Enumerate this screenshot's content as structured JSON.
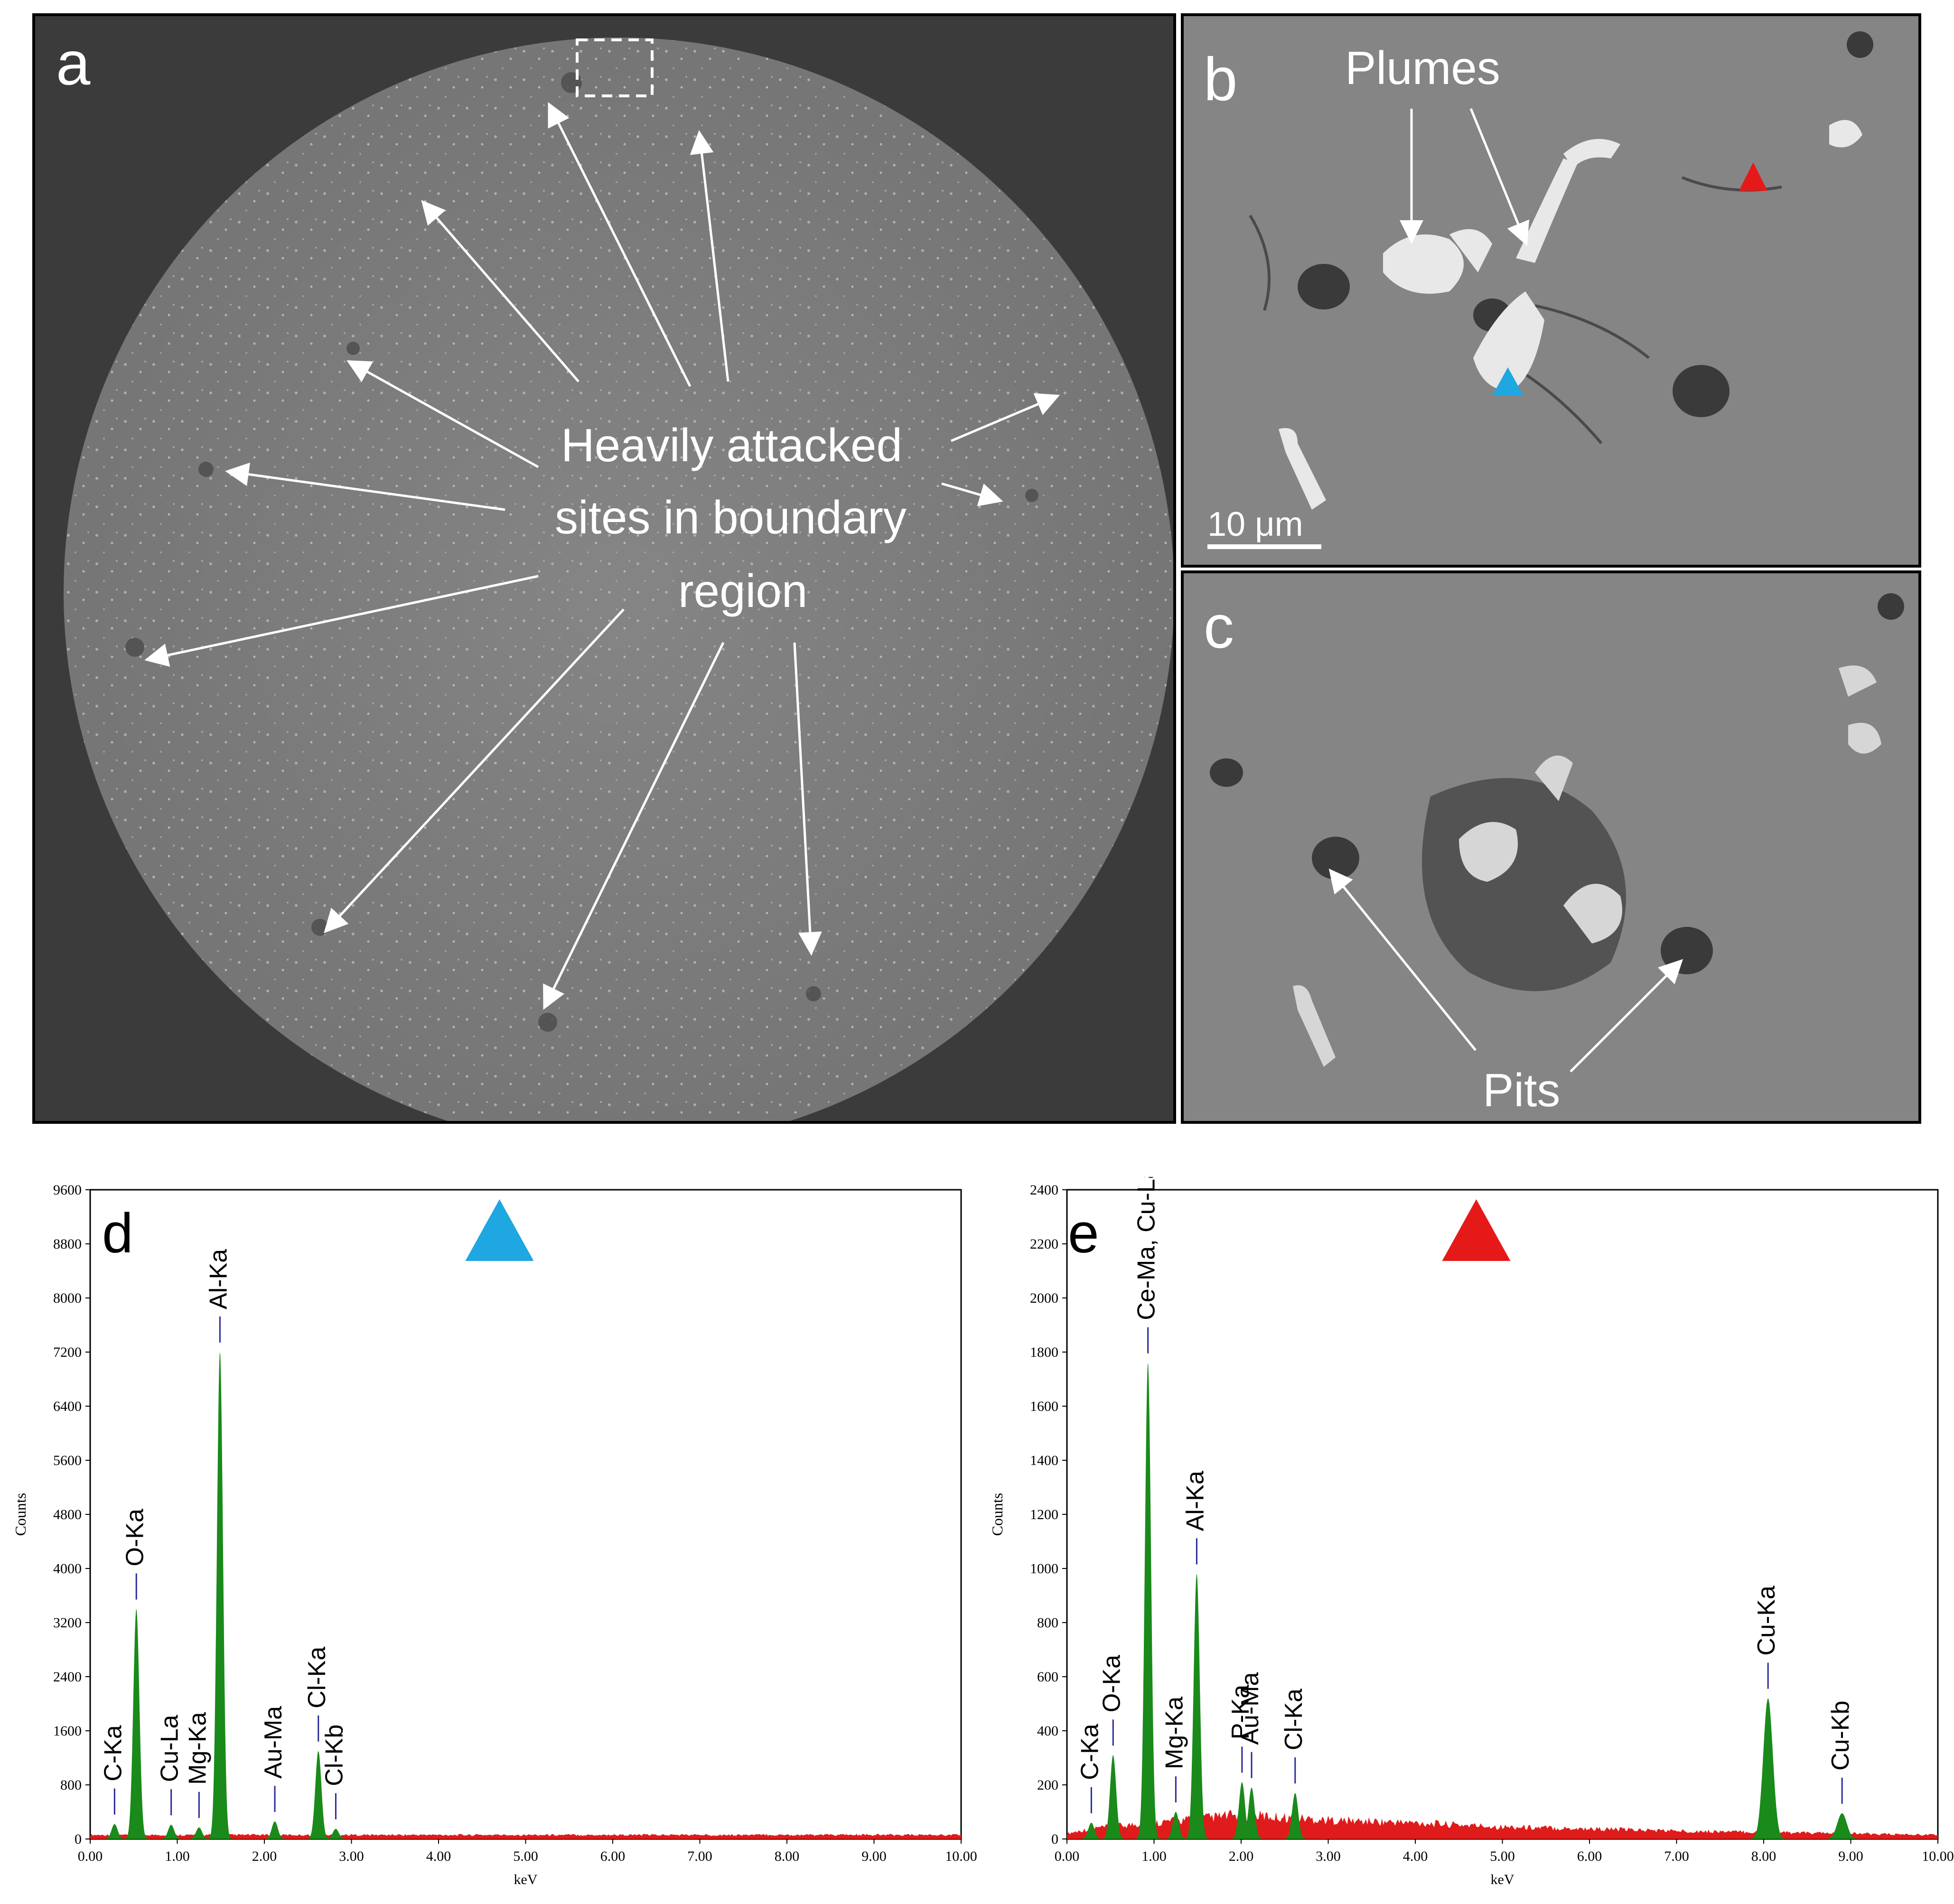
{
  "panels": {
    "a": {
      "label": "a",
      "annotation_lines": [
        "Heavily attacked",
        "sites in boundary",
        "region"
      ]
    },
    "b": {
      "label": "b",
      "annotation": "Plumes",
      "scale_bar": "10 μm"
    },
    "c": {
      "label": "c",
      "annotation": "Pits"
    },
    "d": {
      "label": "d",
      "marker_color": "#1ea7e1"
    },
    "e": {
      "label": "e",
      "marker_color": "#e61919"
    }
  },
  "chart_data": [
    {
      "type": "area",
      "panel": "d",
      "xlabel": "keV",
      "ylabel": "Counts",
      "xlim": [
        0,
        10
      ],
      "ylim": [
        0,
        9600
      ],
      "x_ticks": [
        "0.00",
        "1.00",
        "2.00",
        "3.00",
        "4.00",
        "5.00",
        "6.00",
        "7.00",
        "8.00",
        "9.00",
        "10.00"
      ],
      "y_ticks": [
        "0",
        "800",
        "1600",
        "2400",
        "3200",
        "4000",
        "4800",
        "5600",
        "6400",
        "7200",
        "8000",
        "8800",
        "9600"
      ],
      "background_level": 60,
      "peaks": [
        {
          "label": "C-Ka",
          "keV": 0.28,
          "counts": 220
        },
        {
          "label": "O-Ka",
          "keV": 0.53,
          "counts": 3400
        },
        {
          "label": "Cu-La",
          "keV": 0.93,
          "counts": 210
        },
        {
          "label": "Mg-Ka",
          "keV": 1.25,
          "counts": 170
        },
        {
          "label": "Al-Ka",
          "keV": 1.49,
          "counts": 7200
        },
        {
          "label": "Au-Ma",
          "keV": 2.12,
          "counts": 260
        },
        {
          "label": "Cl-Ka",
          "keV": 2.62,
          "counts": 1300
        },
        {
          "label": "Cl-Kb",
          "keV": 2.82,
          "counts": 150
        }
      ],
      "colors": {
        "background": "#e01b1b",
        "peaks": "#1a8a1a",
        "label_tick": "#2a2a9a"
      }
    },
    {
      "type": "area",
      "panel": "e",
      "xlabel": "keV",
      "ylabel": "Counts",
      "xlim": [
        0,
        10
      ],
      "ylim": [
        0,
        2400
      ],
      "x_ticks": [
        "0.00",
        "1.00",
        "2.00",
        "3.00",
        "4.00",
        "5.00",
        "6.00",
        "7.00",
        "8.00",
        "9.00",
        "10.00"
      ],
      "y_ticks": [
        "0",
        "200",
        "400",
        "600",
        "800",
        "1000",
        "1200",
        "1400",
        "1600",
        "1800",
        "2000",
        "2200",
        "2400"
      ],
      "background_points": [
        [
          0,
          20
        ],
        [
          0.3,
          40
        ],
        [
          1,
          60
        ],
        [
          2,
          90
        ],
        [
          3,
          70
        ],
        [
          4,
          60
        ],
        [
          5,
          45
        ],
        [
          6,
          38
        ],
        [
          7,
          30
        ],
        [
          8,
          25
        ],
        [
          9,
          20
        ],
        [
          10,
          15
        ]
      ],
      "peaks": [
        {
          "label": "C-Ka",
          "keV": 0.28,
          "counts": 60
        },
        {
          "label": "O-Ka",
          "keV": 0.53,
          "counts": 310
        },
        {
          "label": "Ce-Ma, Cu-La",
          "keV": 0.93,
          "counts": 1760
        },
        {
          "label": "Mg-Ka",
          "keV": 1.25,
          "counts": 100
        },
        {
          "label": "Al-Ka",
          "keV": 1.49,
          "counts": 980
        },
        {
          "label": "P-Ka",
          "keV": 2.01,
          "counts": 210
        },
        {
          "label": "Au-Ma",
          "keV": 2.12,
          "counts": 190
        },
        {
          "label": "Cl-Ka",
          "keV": 2.62,
          "counts": 170
        },
        {
          "label": "Cu-Ka",
          "keV": 8.05,
          "counts": 520
        },
        {
          "label": "Cu-Kb",
          "keV": 8.9,
          "counts": 95
        }
      ],
      "colors": {
        "background": "#e01b1b",
        "peaks": "#1a8a1a",
        "label_tick": "#2a2a9a"
      }
    }
  ]
}
